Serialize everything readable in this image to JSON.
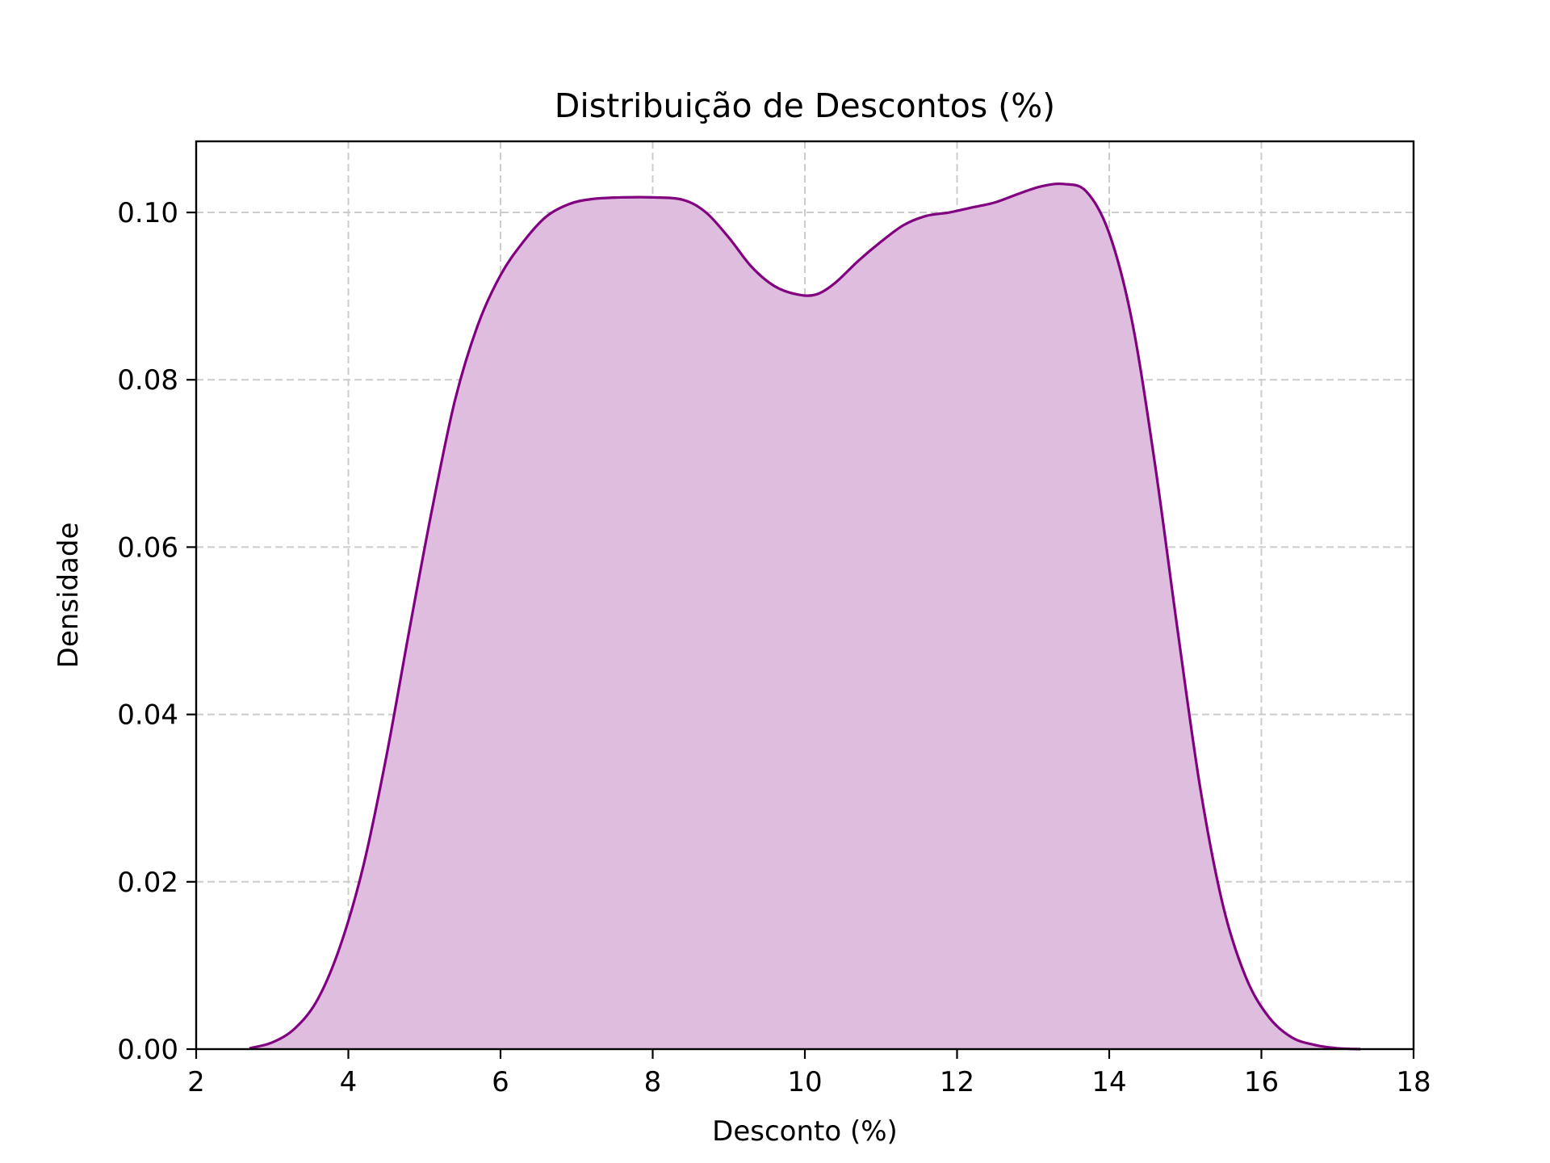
{
  "chart_data": {
    "type": "area",
    "title": "Distribuição de Descontos (%)",
    "xlabel": "Desconto (%)",
    "ylabel": "Densidade",
    "xlim": [
      2,
      18
    ],
    "ylim": [
      0,
      0.1085
    ],
    "xticks": [
      2,
      4,
      6,
      8,
      10,
      12,
      14,
      16,
      18
    ],
    "xtick_labels": [
      "2",
      "4",
      "6",
      "8",
      "10",
      "12",
      "14",
      "16",
      "18"
    ],
    "yticks": [
      0.0,
      0.02,
      0.04,
      0.06,
      0.08,
      0.1
    ],
    "ytick_labels": [
      "0.00",
      "0.02",
      "0.04",
      "0.06",
      "0.08",
      "0.10"
    ],
    "grid": true,
    "line_color": "#800080",
    "fill_color": "#dfbddf",
    "series": [
      {
        "x": [
          2.7,
          3.0,
          3.3,
          3.6,
          3.9,
          4.2,
          4.5,
          4.8,
          5.1,
          5.4,
          5.7,
          6.0,
          6.3,
          6.6,
          6.9,
          7.2,
          7.6,
          8.0,
          8.4,
          8.7,
          9.0,
          9.3,
          9.6,
          9.9,
          10.15,
          10.4,
          10.7,
          11.0,
          11.3,
          11.6,
          11.9,
          12.2,
          12.5,
          12.8,
          13.1,
          13.4,
          13.7,
          14.0,
          14.3,
          14.6,
          14.9,
          15.2,
          15.5,
          15.8,
          16.1,
          16.4,
          16.7,
          17.0,
          17.3
        ],
        "y": [
          0.0001,
          0.0008,
          0.0025,
          0.006,
          0.0125,
          0.022,
          0.035,
          0.05,
          0.0645,
          0.0775,
          0.0865,
          0.0925,
          0.0965,
          0.0995,
          0.101,
          0.1016,
          0.1018,
          0.1018,
          0.1015,
          0.1,
          0.097,
          0.0935,
          0.0912,
          0.0902,
          0.0902,
          0.0916,
          0.0942,
          0.0965,
          0.0985,
          0.0996,
          0.1,
          0.1006,
          0.1012,
          0.1022,
          0.1031,
          0.1034,
          0.1025,
          0.0975,
          0.087,
          0.07,
          0.05,
          0.031,
          0.017,
          0.0085,
          0.0038,
          0.0014,
          0.0005,
          0.0001,
          0.0
        ]
      }
    ]
  }
}
